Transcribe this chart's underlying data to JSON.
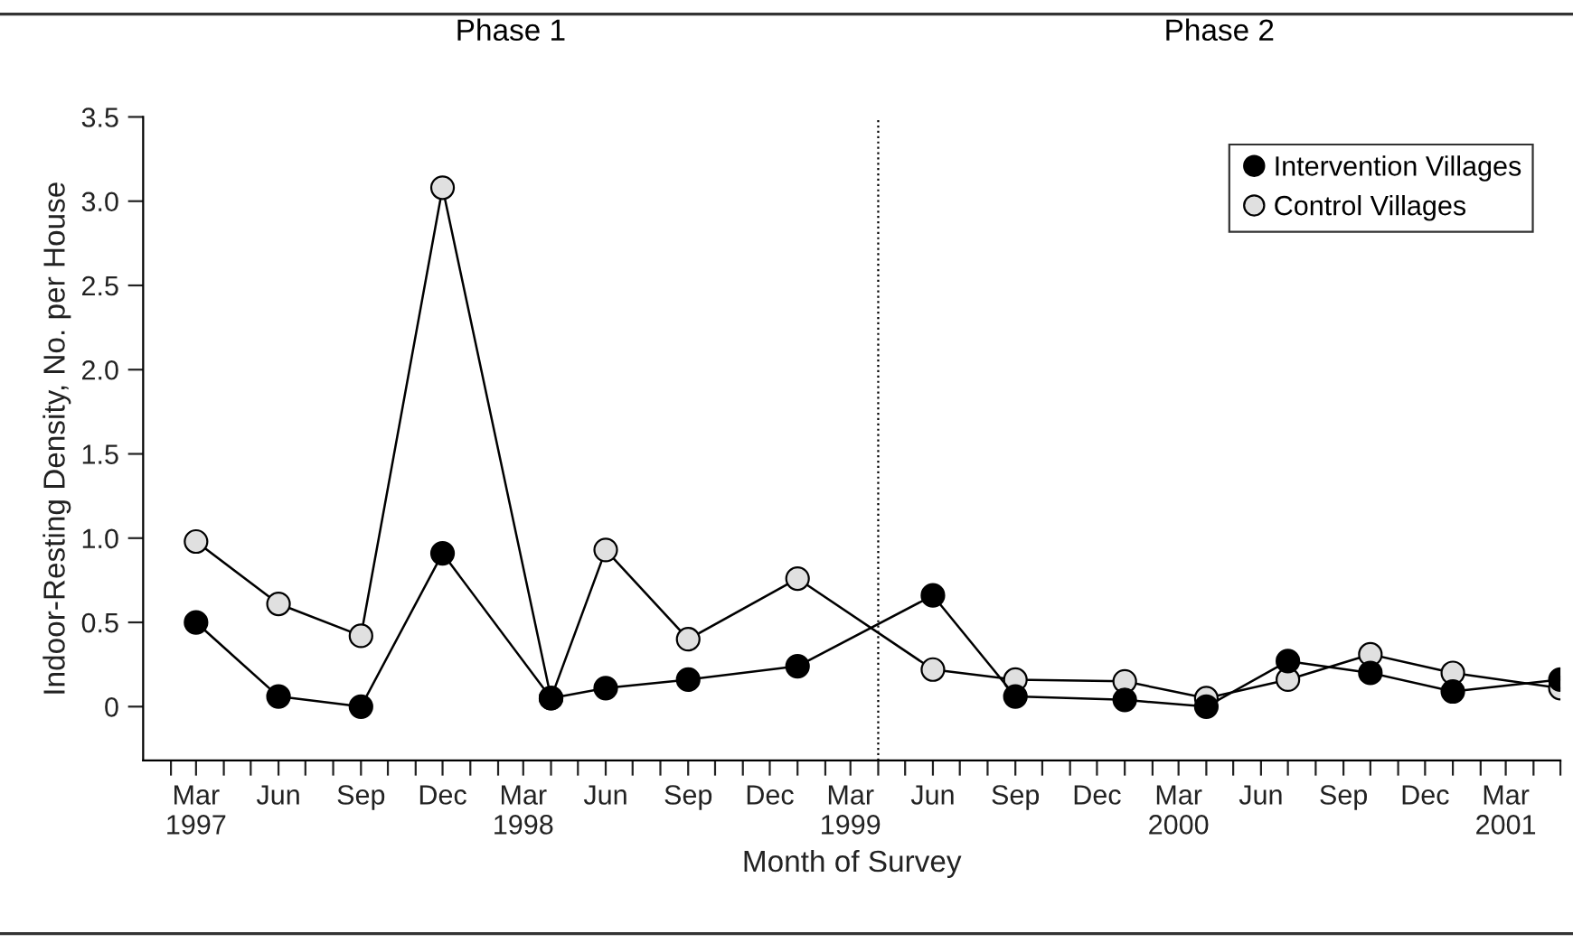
{
  "chart_data": {
    "type": "line",
    "xlabel": "Month of Survey",
    "ylabel": "Indoor-Resting Density, No. per House",
    "annotations": [
      "Phase 1",
      "Phase 2"
    ],
    "series": [
      {
        "name": "Intervention Villages",
        "color": "#000000",
        "x": [
          "1997-03",
          "1997-06",
          "1997-09",
          "1997-12",
          "1998-04",
          "1998-06",
          "1998-09",
          "1999-01",
          "1999-06",
          "1999-09",
          "2000-01",
          "2000-04",
          "2000-07",
          "2000-10",
          "2001-01",
          "2001-05"
        ],
        "values": [
          0.5,
          0.06,
          0.0,
          0.91,
          0.05,
          0.11,
          0.16,
          0.24,
          0.66,
          0.06,
          0.04,
          0.0,
          0.27,
          0.2,
          0.09,
          0.16
        ]
      },
      {
        "name": "Control Villages",
        "color": "#e0e0e0",
        "x": [
          "1997-03",
          "1997-06",
          "1997-09",
          "1997-12",
          "1998-04",
          "1998-06",
          "1998-09",
          "1999-01",
          "1999-06",
          "1999-09",
          "2000-01",
          "2000-04",
          "2000-07",
          "2000-10",
          "2001-01",
          "2001-05"
        ],
        "values": [
          0.98,
          0.61,
          0.42,
          3.08,
          0.05,
          0.93,
          0.4,
          0.76,
          0.22,
          0.16,
          0.15,
          0.05,
          0.16,
          0.31,
          0.2,
          0.11
        ]
      }
    ],
    "xlim": [
      "1997-01",
      "2001-05"
    ],
    "xticks": [
      {
        "value": "1997-02",
        "label": null
      },
      {
        "value": "1997-03",
        "label": "Mar\n1997"
      },
      {
        "value": "1997-04",
        "label": null
      },
      {
        "value": "1997-05",
        "label": null
      },
      {
        "value": "1997-06",
        "label": "Jun"
      },
      {
        "value": "1997-07",
        "label": null
      },
      {
        "value": "1997-08",
        "label": null
      },
      {
        "value": "1997-09",
        "label": "Sep"
      },
      {
        "value": "1997-10",
        "label": null
      },
      {
        "value": "1997-11",
        "label": null
      },
      {
        "value": "1997-12",
        "label": "Dec"
      },
      {
        "value": "1998-01",
        "label": null
      },
      {
        "value": "1998-02",
        "label": null
      },
      {
        "value": "1998-03",
        "label": "Mar\n1998"
      },
      {
        "value": "1998-04",
        "label": null
      },
      {
        "value": "1998-05",
        "label": null
      },
      {
        "value": "1998-06",
        "label": "Jun"
      },
      {
        "value": "1998-07",
        "label": null
      },
      {
        "value": "1998-08",
        "label": null
      },
      {
        "value": "1998-09",
        "label": "Sep"
      },
      {
        "value": "1998-10",
        "label": null
      },
      {
        "value": "1998-11",
        "label": null
      },
      {
        "value": "1998-12",
        "label": "Dec"
      },
      {
        "value": "1999-01",
        "label": null
      },
      {
        "value": "1999-02",
        "label": null
      },
      {
        "value": "1999-03",
        "label": "Mar\n1999"
      },
      {
        "value": "1999-04",
        "label": null
      },
      {
        "value": "1999-05",
        "label": null
      },
      {
        "value": "1999-06",
        "label": "Jun"
      },
      {
        "value": "1999-07",
        "label": null
      },
      {
        "value": "1999-08",
        "label": null
      },
      {
        "value": "1999-09",
        "label": "Sep"
      },
      {
        "value": "1999-10",
        "label": null
      },
      {
        "value": "1999-11",
        "label": null
      },
      {
        "value": "1999-12",
        "label": "Dec"
      },
      {
        "value": "2000-01",
        "label": null
      },
      {
        "value": "2000-02",
        "label": null
      },
      {
        "value": "2000-03",
        "label": "Mar\n2000"
      },
      {
        "value": "2000-04",
        "label": null
      },
      {
        "value": "2000-05",
        "label": null
      },
      {
        "value": "2000-06",
        "label": "Jun"
      },
      {
        "value": "2000-07",
        "label": null
      },
      {
        "value": "2000-08",
        "label": null
      },
      {
        "value": "2000-09",
        "label": "Sep"
      },
      {
        "value": "2000-10",
        "label": null
      },
      {
        "value": "2000-11",
        "label": null
      },
      {
        "value": "2000-12",
        "label": "Dec"
      },
      {
        "value": "2001-01",
        "label": null
      },
      {
        "value": "2001-02",
        "label": null
      },
      {
        "value": "2001-03",
        "label": "Mar\n2001"
      },
      {
        "value": "2001-04",
        "label": null
      },
      {
        "value": "2001-05",
        "label": null
      }
    ],
    "ylim": [
      -0.32,
      3.5
    ],
    "yticks": [
      0,
      0.5,
      {
        "value": 1,
        "label": "1.0"
      },
      1.5,
      {
        "value": 2,
        "label": "2.0"
      },
      2.5,
      {
        "value": 3,
        "label": "3.0"
      },
      3.5
    ],
    "ref_lines": [
      {
        "axis": "x",
        "value": "1999-04",
        "line_style": "dotted",
        "color": "#000000"
      }
    ],
    "marker": "circle",
    "line_style": "solid",
    "grid": false,
    "legend": "top right"
  }
}
